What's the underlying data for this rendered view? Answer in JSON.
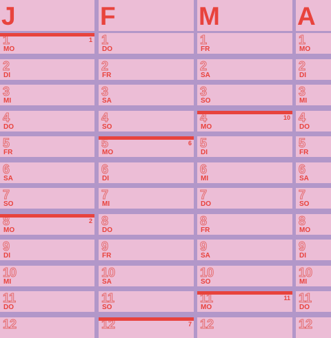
{
  "months": [
    {
      "letter": "J",
      "days": [
        {
          "num": "1",
          "wd": "MO",
          "week": "1"
        },
        {
          "num": "2",
          "wd": "DI"
        },
        {
          "num": "3",
          "wd": "MI"
        },
        {
          "num": "4",
          "wd": "DO"
        },
        {
          "num": "5",
          "wd": "FR"
        },
        {
          "num": "6",
          "wd": "SA"
        },
        {
          "num": "7",
          "wd": "SO"
        },
        {
          "num": "8",
          "wd": "MO",
          "week": "2"
        },
        {
          "num": "9",
          "wd": "DI"
        },
        {
          "num": "10",
          "wd": "MI"
        },
        {
          "num": "11",
          "wd": "DO"
        },
        {
          "num": "12",
          "wd": ""
        }
      ]
    },
    {
      "letter": "F",
      "days": [
        {
          "num": "1",
          "wd": "DO"
        },
        {
          "num": "2",
          "wd": "FR"
        },
        {
          "num": "3",
          "wd": "SA"
        },
        {
          "num": "4",
          "wd": "SO"
        },
        {
          "num": "5",
          "wd": "MO",
          "week": "6"
        },
        {
          "num": "6",
          "wd": "DI"
        },
        {
          "num": "7",
          "wd": "MI"
        },
        {
          "num": "8",
          "wd": "DO"
        },
        {
          "num": "9",
          "wd": "FR"
        },
        {
          "num": "10",
          "wd": "SA"
        },
        {
          "num": "11",
          "wd": "SO"
        },
        {
          "num": "12",
          "wd": "",
          "week": "7"
        }
      ]
    },
    {
      "letter": "M",
      "days": [
        {
          "num": "1",
          "wd": "FR"
        },
        {
          "num": "2",
          "wd": "SA"
        },
        {
          "num": "3",
          "wd": "SO"
        },
        {
          "num": "4",
          "wd": "MO",
          "week": "10"
        },
        {
          "num": "5",
          "wd": "DI"
        },
        {
          "num": "6",
          "wd": "MI"
        },
        {
          "num": "7",
          "wd": "DO"
        },
        {
          "num": "8",
          "wd": "FR"
        },
        {
          "num": "9",
          "wd": "SA"
        },
        {
          "num": "10",
          "wd": "SO"
        },
        {
          "num": "11",
          "wd": "MO",
          "week": "11"
        },
        {
          "num": "12",
          "wd": ""
        }
      ]
    },
    {
      "letter": "A",
      "days": [
        {
          "num": "1",
          "wd": "MO"
        },
        {
          "num": "2",
          "wd": "DI"
        },
        {
          "num": "3",
          "wd": "MI"
        },
        {
          "num": "4",
          "wd": "DO"
        },
        {
          "num": "5",
          "wd": "FR"
        },
        {
          "num": "6",
          "wd": "SA"
        },
        {
          "num": "7",
          "wd": "SO"
        },
        {
          "num": "8",
          "wd": "MO"
        },
        {
          "num": "9",
          "wd": "DI"
        },
        {
          "num": "10",
          "wd": "MI"
        },
        {
          "num": "11",
          "wd": "DO"
        },
        {
          "num": "12",
          "wd": ""
        }
      ]
    }
  ],
  "colors": {
    "cell": "#ecbdd6",
    "grid": "#b297c9",
    "accent": "#e8433d",
    "outline": "#e56a6b"
  }
}
